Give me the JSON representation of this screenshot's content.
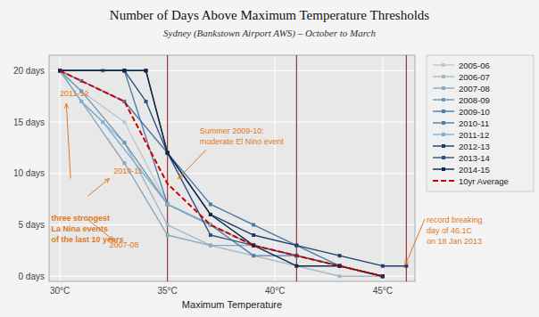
{
  "chart_data": {
    "type": "line",
    "title": "Number of Days Above Maximum Temperature Thresholds",
    "subtitle": "Sydney (Bankstown Airport AWS) – October to March",
    "x_label": "Maximum Temperature",
    "xlim": [
      29.5,
      46.5
    ],
    "ylim": [
      -0.5,
      21.5
    ],
    "xticks": [
      {
        "value": 30,
        "label": "30°C"
      },
      {
        "value": 35,
        "label": "35°C"
      },
      {
        "value": 40,
        "label": "40°C"
      },
      {
        "value": 45,
        "label": "45°C"
      }
    ],
    "yticks": [
      {
        "value": 0,
        "label": "0 days"
      },
      {
        "value": 5,
        "label": "5 days"
      },
      {
        "value": 10,
        "label": "10 days"
      },
      {
        "value": 15,
        "label": "15 days"
      },
      {
        "value": 20,
        "label": "20 days"
      }
    ],
    "grid": true,
    "legend": "right",
    "reference_lines": [
      35.0,
      41.0,
      46.1
    ],
    "series": [
      {
        "name": "2005-06",
        "color": "#b8c8d4",
        "marker": "square",
        "x": [
          30,
          31,
          33,
          35,
          37,
          39,
          41,
          43,
          45
        ],
        "values": [
          20,
          18,
          15,
          7,
          5,
          3,
          2,
          1,
          0
        ]
      },
      {
        "name": "2006-07",
        "color": "#a0b8c8",
        "marker": "square",
        "x": [
          30,
          31,
          33,
          35,
          37,
          39,
          41,
          43,
          45
        ],
        "values": [
          20,
          17,
          13,
          5,
          3,
          2,
          1,
          0,
          0
        ]
      },
      {
        "name": "2007-08",
        "color": "#8aaabf",
        "marker": "square",
        "x": [
          30,
          31,
          33,
          35,
          37,
          39,
          41,
          43,
          45
        ],
        "values": [
          20,
          17,
          11,
          4,
          3,
          3,
          2,
          1,
          0
        ]
      },
      {
        "name": "2008-09",
        "color": "#6e98b2",
        "marker": "square",
        "x": [
          30,
          31,
          33,
          35,
          37,
          39,
          41,
          43,
          45
        ],
        "values": [
          20,
          18,
          13,
          7,
          5,
          3,
          2,
          1,
          0
        ]
      },
      {
        "name": "2009-10",
        "color": "#4a7aa8",
        "marker": "square",
        "x": [
          30,
          31,
          33,
          35,
          37,
          39,
          41,
          43,
          45
        ],
        "values": [
          20,
          19,
          17,
          12,
          7,
          5,
          3,
          1,
          0
        ]
      },
      {
        "name": "2010-11",
        "color": "#5080a8",
        "marker": "square",
        "x": [
          30,
          32,
          33,
          35,
          37,
          39,
          41,
          43,
          45
        ],
        "values": [
          20,
          20,
          20,
          7,
          5,
          2,
          2,
          1,
          0
        ]
      },
      {
        "name": "2011-12",
        "color": "#80b0d0",
        "marker": "square",
        "x": [
          30,
          31,
          32,
          35,
          37,
          39,
          41,
          43,
          45
        ],
        "values": [
          20,
          17,
          15,
          7,
          5,
          3,
          2,
          1,
          0
        ]
      },
      {
        "name": "2012-13",
        "color": "#1e3d6e",
        "marker": "square",
        "x": [
          30,
          33,
          34,
          35,
          37,
          39,
          41,
          43,
          45,
          46.1
        ],
        "values": [
          20,
          20,
          20,
          12,
          6,
          4,
          3,
          2,
          1,
          1
        ]
      },
      {
        "name": "2013-14",
        "color": "#2e5080",
        "marker": "square",
        "x": [
          30,
          33,
          34,
          35,
          37,
          39,
          41,
          43,
          45
        ],
        "values": [
          20,
          20,
          17,
          12,
          4,
          3,
          2,
          1,
          0
        ]
      },
      {
        "name": "2014-15",
        "color": "#0d2848",
        "marker": "square",
        "x": [
          30,
          33,
          34,
          35,
          37,
          39,
          41,
          43,
          45
        ],
        "values": [
          20,
          20,
          20,
          12,
          6,
          3,
          1,
          1,
          0
        ]
      },
      {
        "name": "10yr Average",
        "color": "#cc0000",
        "line_style": "dashed",
        "x": [
          30,
          33,
          35,
          37,
          39,
          41,
          43,
          45
        ],
        "values": [
          20,
          17,
          9,
          5,
          3,
          2,
          1,
          0
        ]
      }
    ],
    "annotations": [
      "three strongest\nLa Nina events\nof the last 10 years",
      "2011-12",
      "2010-11",
      "2007-08",
      "Summer 2009-10:\nmoderate El Nino event",
      "record breaking\nday of 46.1C\non 18 Jan 2013"
    ]
  }
}
